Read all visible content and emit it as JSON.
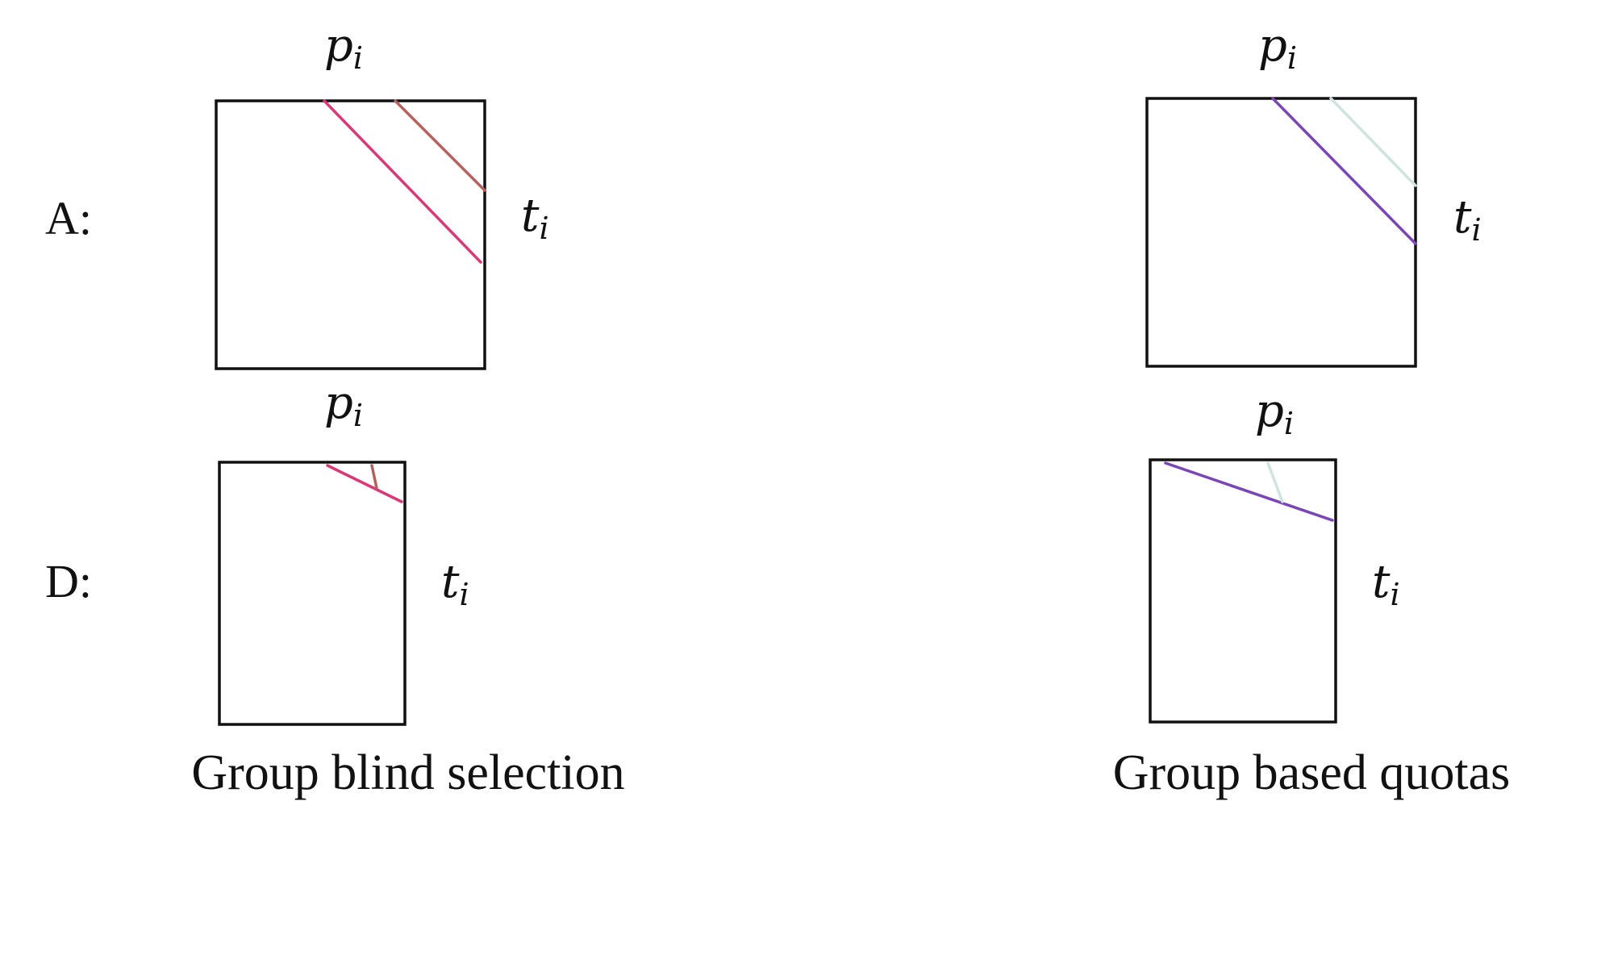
{
  "rows": [
    {
      "id": "A",
      "label": "A:"
    },
    {
      "id": "D",
      "label": "D:"
    }
  ],
  "axis_labels": {
    "top": {
      "base": "p",
      "sub": "i"
    },
    "right": {
      "base": "t",
      "sub": "i"
    }
  },
  "columns": [
    {
      "id": "blind",
      "caption": "Group blind selection"
    },
    {
      "id": "quota",
      "caption": "Group based quotas"
    }
  ],
  "colors": {
    "blind_main": "#d63a78",
    "blind_secondary": "#b5625e",
    "quota_main": "#7a45b4",
    "quota_secondary": "#cfe3df",
    "frame": "#111111"
  }
}
